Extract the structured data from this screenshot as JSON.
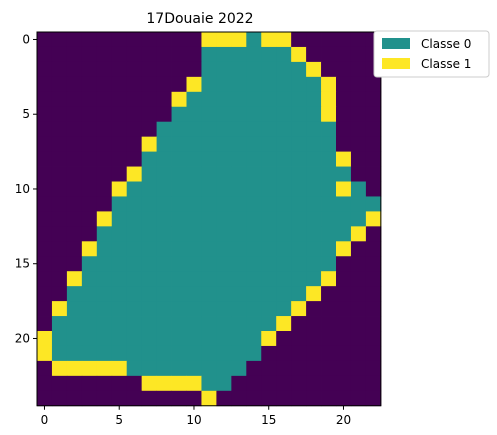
{
  "chart_data": {
    "type": "heatmap",
    "title": "17Douaie 2022",
    "xlabel": "",
    "ylabel": "",
    "x_ticks": [
      0,
      5,
      10,
      15,
      20
    ],
    "y_ticks": [
      0,
      5,
      10,
      15,
      20
    ],
    "xlim": [
      -0.5,
      21.5
    ],
    "ylim": [
      24.5,
      -0.5
    ],
    "grid": false,
    "legend": {
      "placement": "outside-top-right",
      "entries": [
        {
          "label": "Classe 0",
          "color": "#21918c"
        },
        {
          "label": "Classe 1",
          "color": "#fde725"
        }
      ]
    },
    "value_colors": {
      "0": "#21918c",
      "1": "#fde725",
      "2": "#440154"
    },
    "rows": [
      "22222222222111011222222",
      "22222222222000000122222",
      "22222222222000000012222",
      "22222222221000000001222",
      "22222222210000000001222",
      "22222222200000000001222",
      "22222222000000000000222",
      "22222221000000000000222",
      "22222220000000000000122",
      "22222210000000000000022",
      "22222100000000000000102",
      "22222000000000000000000",
      "22221000000000000000001",
      "22220000000000000000012",
      "22210000000000000000122",
      "22200000000000000000222",
      "22100000000000000001222",
      "22000000000000000012222",
      "21000000000000000122222",
      "20000000000000001222222",
      "10000000000000012222222",
      "10000000000000022222222",
      "21111100000000222222222",
      "22222221111002222222222",
      "22222222222122222222222"
    ]
  }
}
